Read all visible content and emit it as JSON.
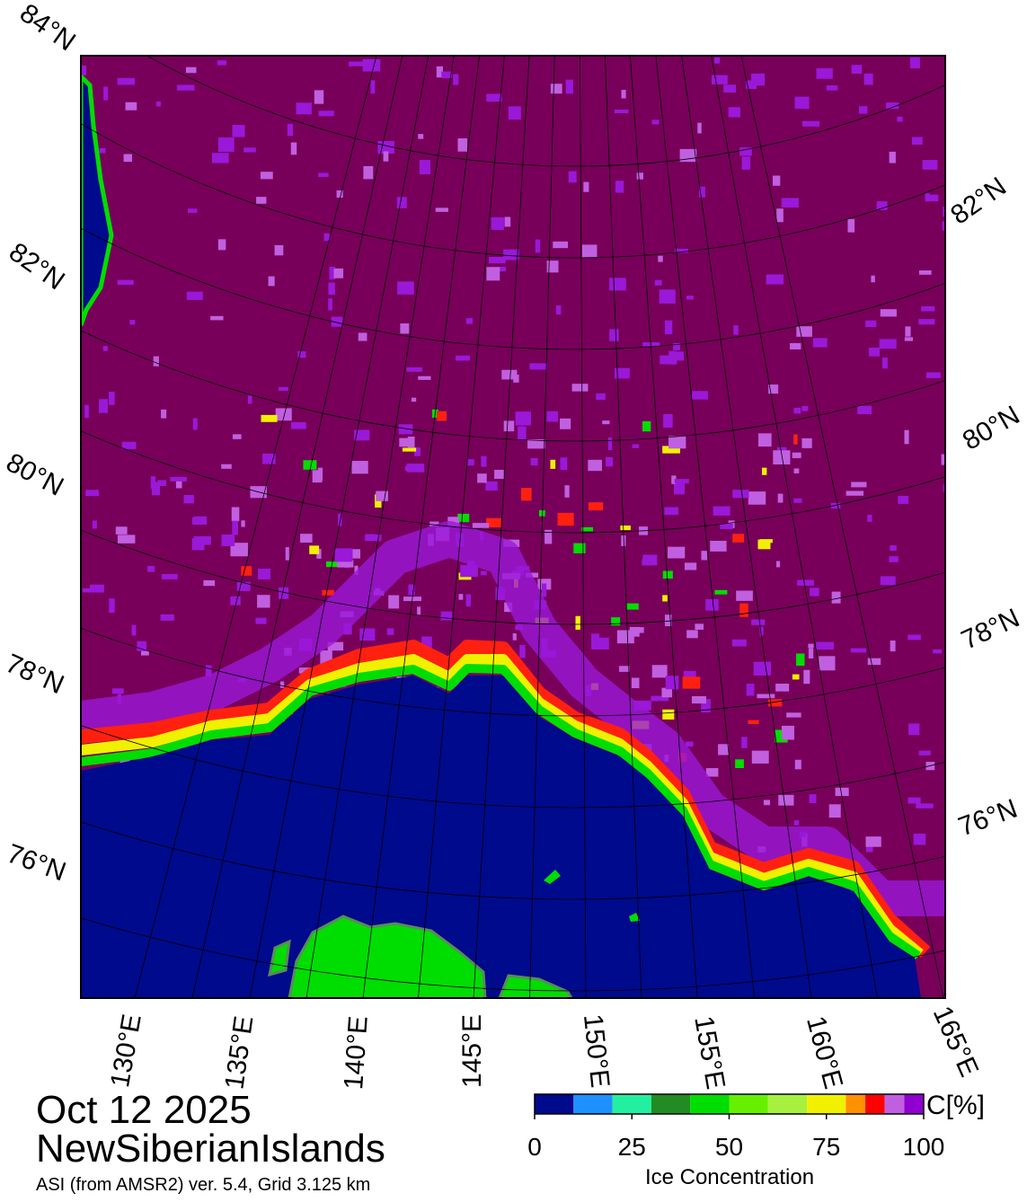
{
  "map": {
    "title": "Oct 12 2025",
    "region": "NewSiberianIslands",
    "source": "ASI (from AMSR2) ver. 5.4,  Grid 3.125 km",
    "lat_labels_left": [
      "84°N",
      "82°N",
      "80°N",
      "78°N",
      "76°N"
    ],
    "lat_labels_right": [
      "82°N",
      "80°N",
      "78°N",
      "76°N"
    ],
    "lon_labels": [
      "130°E",
      "135°E",
      "140°E",
      "145°E",
      "150°E",
      "155°E",
      "160°E",
      "165°E"
    ]
  },
  "colorbar": {
    "bins": [
      0,
      10,
      20,
      30,
      40,
      50,
      60,
      70,
      80,
      85,
      90,
      95,
      100
    ],
    "colors": [
      "#000a8c",
      "#1e90ff",
      "#22f0a0",
      "#228b22",
      "#00dd00",
      "#66f000",
      "#a8f040",
      "#f0f000",
      "#ff9000",
      "#ff0000",
      "#c060e0",
      "#9000d0"
    ],
    "xlim": [
      0,
      100
    ],
    "ticks": [
      0,
      25,
      50,
      75,
      100
    ],
    "unit": "C[%]",
    "label": "Ice Concentration"
  }
}
